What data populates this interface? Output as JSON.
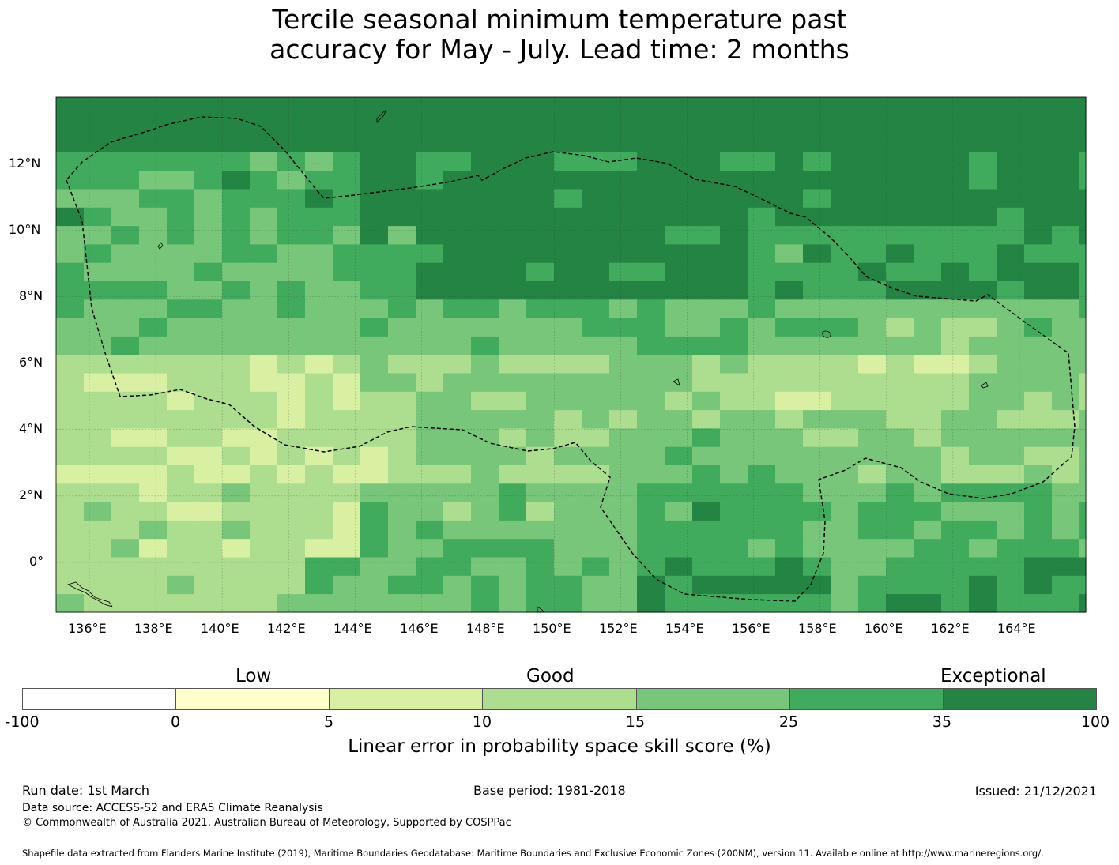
{
  "title": {
    "line1": "Tercile seasonal minimum temperature past",
    "line2": "accuracy for May - July. Lead time: 2 months"
  },
  "map": {
    "lat_labels": [
      "12°N",
      "10°N",
      "8°N",
      "6°N",
      "4°N",
      "2°N",
      "0°"
    ],
    "lon_labels": [
      "136°E",
      "138°E",
      "140°E",
      "142°E",
      "144°E",
      "146°E",
      "148°E",
      "150°E",
      "152°E",
      "154°E",
      "156°E",
      "158°E",
      "160°E",
      "162°E",
      "164°E"
    ],
    "lat_range": [
      -1.5,
      14.0
    ],
    "lon_range": [
      135.0,
      166.0
    ]
  },
  "colorbar": {
    "categories": [
      "Low",
      "Good",
      "Exceptional"
    ],
    "ticks": [
      "-100",
      "0",
      "5",
      "10",
      "15",
      "25",
      "35",
      "100"
    ],
    "colors": [
      "#ffffff",
      "#ffffcc",
      "#d9f0a3",
      "#addd8e",
      "#78c679",
      "#41ab5d",
      "#238443"
    ],
    "label": "Linear error in probability space skill score (%)"
  },
  "footer": {
    "run_date": "Run date: 1st March",
    "base_period": "Base period: 1981-2018",
    "issued": "Issued: 21/12/2021",
    "data_source": "Data source: ACCESS-S2 and ERA5 Climate Reanalysis",
    "copyright": "© Commonwealth of Australia 2021, Australian Bureau of Meteorology, Supported by COSPPac",
    "shapefile": "Shapefile data extracted from Flanders Marine Institute (2019), Maritime Boundaries Geodatabase: Maritime Boundaries and Exclusive Economic Zones (200NM), version 11. Available online at http://www.marineregions.org/."
  }
}
